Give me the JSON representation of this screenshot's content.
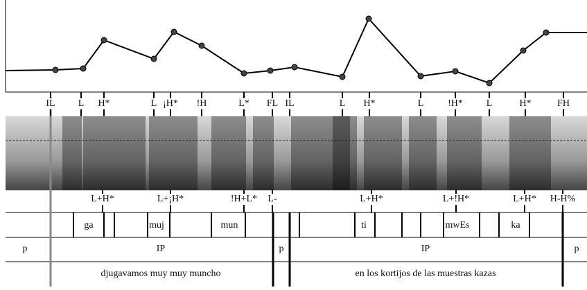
{
  "top_tones": [
    "IL",
    "L",
    "H*",
    "L",
    "¡H*",
    "!H",
    "L*",
    "FL",
    "IL",
    "L",
    "H*",
    "L",
    "!H*",
    "L",
    "H*",
    "FH"
  ],
  "bottom_tones": [
    "L+H*",
    "L+¡H*",
    "!H+L*",
    "L-",
    "L+H*",
    "L+!H*",
    "L+H*",
    "H-H%"
  ],
  "syllables": [
    "ga",
    "muj",
    "mun",
    "ti",
    "mwEs",
    "ka"
  ],
  "phrases": [
    "p",
    "IP",
    "p",
    "IP",
    "p"
  ],
  "sentences": [
    "djugavamos muy muy muncho",
    "en los kortijos de las muestras kazas"
  ]
}
